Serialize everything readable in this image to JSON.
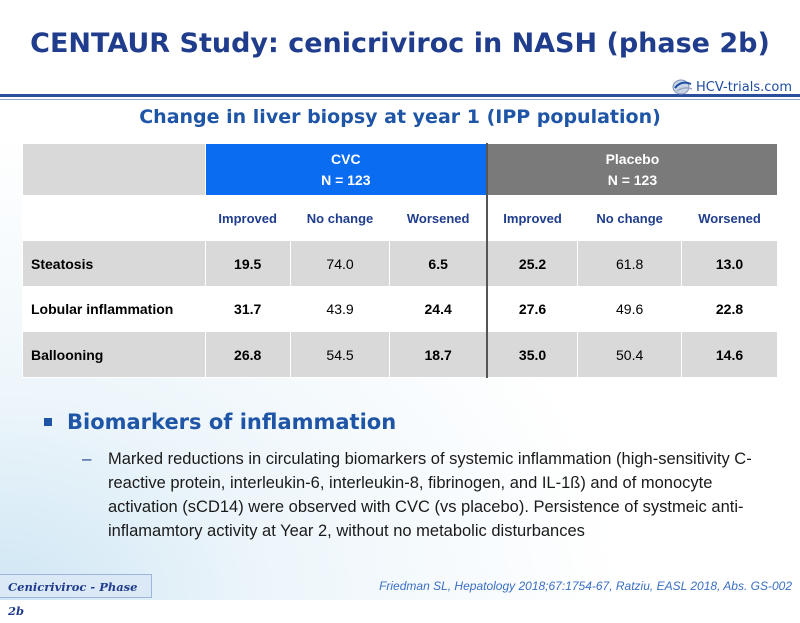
{
  "header": {
    "title": "CENTAUR Study: cenicriviroc in NASH (phase 2b)",
    "logo_text": "HCV-trials.com"
  },
  "table_section": {
    "subtitle": "Change in liver biopsy at year 1 (IPP population)",
    "groups": [
      {
        "name": "CVC",
        "n": "N = 123",
        "color": "#0a6cf0"
      },
      {
        "name": "Placebo",
        "n": "N = 123",
        "color": "#7a7a7a"
      }
    ],
    "subheaders": [
      "Improved",
      "No change",
      "Worsened",
      "Improved",
      "No change",
      "Worsened"
    ],
    "rows": [
      {
        "label": "Steatosis",
        "values": [
          "19.5",
          "74.0",
          "6.5",
          "25.2",
          "61.8",
          "13.0"
        ]
      },
      {
        "label": "Lobular inflammation",
        "values": [
          "31.7",
          "43.9",
          "24.4",
          "27.6",
          "49.6",
          "22.8"
        ]
      },
      {
        "label": "Ballooning",
        "values": [
          "26.8",
          "54.5",
          "18.7",
          "35.0",
          "50.4",
          "14.6"
        ]
      }
    ]
  },
  "bullets": {
    "heading": "Biomarkers of inflammation",
    "sub_item": "Marked reductions in circulating biomarkers of systemic inflammation (high-sensitivity C-reactive protein, interleukin-6, interleukin-8, fibrinogen, and IL-1ß) and of monocyte activation (sCD14) were observed with CVC (vs placebo). Persistence of systmeic anti-inflamamtory activity at Year 2, without no metabolic disturbances"
  },
  "footer": {
    "tab_label": "Cenicriviroc - Phase 2b",
    "reference": "Friedman SL, Hepatology 2018;67:1754-67, Ratziu, EASL 2018, Abs. GS-002"
  }
}
